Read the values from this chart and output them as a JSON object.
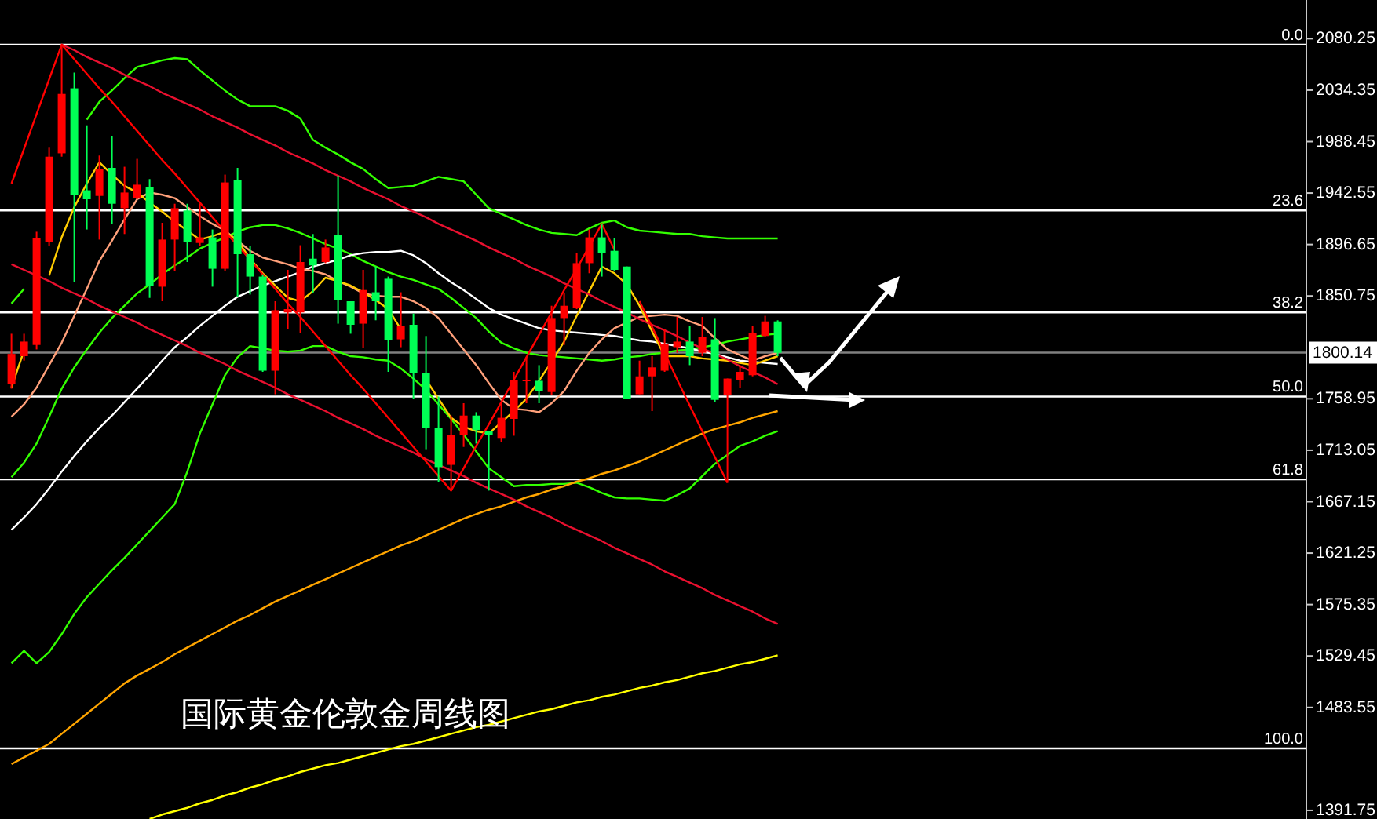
{
  "chart_data": {
    "type": "candlestick",
    "title": "国际黄金伦敦金周线图",
    "tick_labels": "y",
    "ylim": [
      1384,
      2114.8
    ],
    "yticks": [
      2080.25,
      2034.35,
      1988.45,
      1942.55,
      1896.65,
      1850.75,
      1758.95,
      1713.05,
      1667.15,
      1621.25,
      1575.35,
      1529.45,
      1483.55,
      1391.75
    ],
    "categories": [
      null,
      null,
      null,
      null,
      null,
      null,
      null,
      null,
      null,
      null,
      null,
      null,
      null,
      null,
      null,
      null,
      null,
      null,
      null,
      null,
      null,
      null,
      null,
      null,
      null,
      null,
      null,
      null,
      null,
      null,
      null,
      null,
      null,
      null,
      null,
      null,
      null,
      null,
      null,
      null,
      null,
      null,
      null,
      null,
      null,
      null,
      null,
      null,
      null,
      null,
      null,
      null,
      null,
      null,
      null,
      null,
      null,
      null,
      null,
      null,
      null,
      null
    ],
    "ohlc": [
      [
        1772,
        1817,
        1768,
        1799
      ],
      [
        1797,
        1817,
        1793,
        1810
      ],
      [
        1807,
        1908,
        1803,
        1902
      ],
      [
        1899,
        1983,
        1895,
        1975
      ],
      [
        1978,
        2075,
        1975,
        2031
      ],
      [
        2036,
        2050,
        1863,
        1941
      ],
      [
        1945,
        2003,
        1910,
        1937
      ],
      [
        1940,
        1976,
        1901,
        1964
      ],
      [
        1965,
        1993,
        1915,
        1933
      ],
      [
        1929,
        1966,
        1906,
        1943
      ],
      [
        1938,
        1973,
        1937,
        1950
      ],
      [
        1948,
        1955,
        1849,
        1860
      ],
      [
        1859,
        1916,
        1846,
        1901
      ],
      [
        1901,
        1933,
        1873,
        1929
      ],
      [
        1927,
        1933,
        1881,
        1899
      ],
      [
        1898,
        1933,
        1895,
        1903
      ],
      [
        1903,
        1910,
        1859,
        1875
      ],
      [
        1875,
        1959,
        1873,
        1952
      ],
      [
        1954,
        1965,
        1850,
        1888
      ],
      [
        1888,
        1895,
        1852,
        1868
      ],
      [
        1868,
        1870,
        1783,
        1784
      ],
      [
        1784,
        1846,
        1763,
        1838
      ],
      [
        1836,
        1874,
        1821,
        1839
      ],
      [
        1836,
        1896,
        1818,
        1881
      ],
      [
        1884,
        1906,
        1853,
        1878
      ],
      [
        1881,
        1901,
        1880,
        1894
      ],
      [
        1905,
        1958,
        1826,
        1847
      ],
      [
        1846,
        1846,
        1817,
        1825
      ],
      [
        1826,
        1874,
        1804,
        1856
      ],
      [
        1854,
        1877,
        1829,
        1846
      ],
      [
        1866,
        1868,
        1783,
        1811
      ],
      [
        1812,
        1854,
        1805,
        1824
      ],
      [
        1825,
        1835,
        1759,
        1782
      ],
      [
        1782,
        1815,
        1714,
        1733
      ],
      [
        1733,
        1761,
        1685,
        1698
      ],
      [
        1700,
        1744,
        1677,
        1727
      ],
      [
        1727,
        1755,
        1716,
        1744
      ],
      [
        1744,
        1747,
        1719,
        1731
      ],
      [
        1730,
        1730,
        1677,
        1727
      ],
      [
        1724,
        1755,
        1720,
        1742
      ],
      [
        1741,
        1783,
        1726,
        1776
      ],
      [
        1775,
        1796,
        1755,
        1776
      ],
      [
        1775,
        1789,
        1755,
        1766
      ],
      [
        1765,
        1842,
        1762,
        1831
      ],
      [
        1831,
        1853,
        1807,
        1842
      ],
      [
        1840,
        1889,
        1839,
        1880
      ],
      [
        1880,
        1910,
        1871,
        1903
      ],
      [
        1903,
        1915,
        1868,
        1889
      ],
      [
        1891,
        1902,
        1873,
        1874
      ],
      [
        1877,
        1877,
        1759,
        1759
      ],
      [
        1763,
        1793,
        1763,
        1779
      ],
      [
        1779,
        1797,
        1748,
        1787
      ],
      [
        1784,
        1821,
        1783,
        1808
      ],
      [
        1805,
        1832,
        1800,
        1810
      ],
      [
        1810,
        1824,
        1789,
        1797
      ],
      [
        1800,
        1832,
        1797,
        1814
      ],
      [
        1812,
        1831,
        1756,
        1758
      ],
      [
        1762,
        1777,
        1684,
        1777
      ],
      [
        1776,
        1789,
        1769,
        1783
      ],
      [
        1780,
        1824,
        1779,
        1818
      ],
      [
        1815,
        1833,
        1814,
        1828
      ],
      [
        1828,
        1829,
        1797,
        1800
      ]
    ],
    "colors": [
      "#ff0000",
      "#ff0000",
      "#ff0000",
      "#ff0000",
      "#ff0000",
      "#00ff55",
      "#00ff55",
      "#ff0000",
      "#00ff55",
      "#ff0000",
      "#ff0000",
      "#00ff55",
      "#ff0000",
      "#ff0000",
      "#00ff55",
      "#ff0000",
      "#00ff55",
      "#ff0000",
      "#00ff55",
      "#00ff55",
      "#00ff55",
      "#ff0000",
      "#ff0000",
      "#ff0000",
      "#00ff55",
      "#ff0000",
      "#00ff55",
      "#00ff55",
      "#ff0000",
      "#00ff55",
      "#00ff55",
      "#ff0000",
      "#00ff55",
      "#00ff55",
      "#00ff55",
      "#ff0000",
      "#ff0000",
      "#00ff55",
      "#00ff55",
      "#ff0000",
      "#ff0000",
      "#ff0000",
      "#00ff55",
      "#ff0000",
      "#ff0000",
      "#ff0000",
      "#ff0000",
      "#00ff55",
      "#00ff55",
      "#00ff55",
      "#ff0000",
      "#ff0000",
      "#ff0000",
      "#ff0000",
      "#00ff55",
      "#ff0000",
      "#00ff55",
      "#ff0000",
      "#ff0000",
      "#ff0000",
      "#ff0000",
      "#00ff55"
    ],
    "series": [
      {
        "type": "line",
        "color": "#33ff00",
        "values": [
          1844,
          1857,
          null,
          null,
          null,
          null,
          2008,
          2024,
          2034,
          2045,
          2055,
          2058,
          2061,
          2063,
          2062,
          2052,
          2043,
          2034,
          2026,
          2020,
          2020,
          2020,
          2016,
          2009,
          1990,
          1983,
          1977,
          1970,
          1964,
          1955,
          1947,
          1948,
          1949,
          1953,
          1957,
          1955,
          1953,
          1941,
          1929,
          1924,
          1919,
          1914,
          1910,
          1907,
          1906,
          1905,
          1911,
          1916,
          1918,
          1912,
          1909,
          1908,
          1907,
          1906,
          1906,
          1904,
          1903,
          1902,
          1902,
          1902,
          1902,
          1902
        ]
      },
      {
        "type": "line",
        "color": "#33ff00",
        "values": [
          1689,
          1702,
          1719,
          1743,
          1768,
          1787,
          1803,
          1818,
          1831,
          1842,
          1853,
          1861,
          1870,
          1878,
          1885,
          1893,
          1898,
          1903,
          1908,
          1912,
          1914,
          1914,
          1911,
          1907,
          1902,
          1897,
          1893,
          1888,
          1882,
          1877,
          1872,
          1868,
          1865,
          1861,
          1857,
          1849,
          1840,
          1831,
          1819,
          1809,
          1804,
          1800,
          1798,
          1797,
          1796,
          1795,
          1794,
          1793,
          1794,
          1796,
          1797,
          1799,
          1800,
          1802,
          1803,
          1805,
          1807,
          1810,
          1812,
          1814,
          1816,
          1817
        ]
      },
      {
        "type": "line",
        "color": "#33ff00",
        "values": [
          1523,
          1534,
          1523,
          1533,
          1549,
          1567,
          1582,
          1594,
          1606,
          1617,
          1629,
          1641,
          1653,
          1665,
          1694,
          1728,
          1754,
          1780,
          1796,
          1806,
          1804,
          1802,
          1801,
          1802,
          1806,
          1806,
          1801,
          1797,
          1796,
          1794,
          1793,
          1786,
          1777,
          1767,
          1754,
          1741,
          1727,
          1712,
          1697,
          1689,
          1681,
          1682,
          1682,
          1683,
          1683,
          1684,
          1680,
          1675,
          1671,
          1670,
          1670,
          1669,
          1668,
          1673,
          1679,
          1690,
          1701,
          1709,
          1717,
          1721,
          1726,
          1730
        ]
      },
      {
        "type": "line",
        "color": "#ffffff",
        "values": [
          1642,
          1653,
          1665,
          1679,
          1694,
          1708,
          1721,
          1733,
          1744,
          1756,
          1768,
          1780,
          1793,
          1805,
          1814,
          1824,
          1833,
          1842,
          1850,
          1855,
          1860,
          1864,
          1868,
          1872,
          1877,
          1880,
          1883,
          1887,
          1889,
          1890,
          1890,
          1891,
          1887,
          1880,
          1871,
          1863,
          1856,
          1848,
          1840,
          1834,
          1830,
          1826,
          1822,
          1820,
          1819,
          1818,
          1817,
          1816,
          1815,
          1813,
          1811,
          1810,
          1808,
          1806,
          1804,
          1801,
          1799,
          1796,
          1793,
          1792,
          1791,
          1790
        ]
      },
      {
        "type": "line",
        "color": "#ffa07a",
        "values": [
          1743,
          1754,
          1769,
          1789,
          1809,
          1833,
          1857,
          1882,
          1900,
          1919,
          1937,
          1943,
          1941,
          1938,
          1930,
          1922,
          1915,
          1909,
          1900,
          1891,
          1885,
          1882,
          1879,
          1875,
          1873,
          1870,
          1864,
          1859,
          1853,
          1851,
          1850,
          1850,
          1846,
          1840,
          1831,
          1817,
          1803,
          1789,
          1773,
          1758,
          1750,
          1749,
          1747,
          1755,
          1766,
          1784,
          1800,
          1812,
          1822,
          1827,
          1832,
          1833,
          1834,
          1833,
          1828,
          1824,
          1813,
          1803,
          1798,
          1793,
          1797,
          1800
        ]
      },
      {
        "type": "line",
        "color": "#ffcc00",
        "values": [
          1769,
          1802,
          null,
          1869,
          1903,
          1930,
          1951,
          1970,
          1959,
          1949,
          1943,
          1934,
          1926,
          1917,
          1909,
          1901,
          1904,
          1908,
          1900,
          1884,
          1871,
          1860,
          1849,
          1846,
          1855,
          1867,
          1864,
          1860,
          1854,
          1847,
          1839,
          1821,
          null,
          1776,
          1759,
          1742,
          1734,
          1730,
          1728,
          1738,
          1748,
          1759,
          1775,
          1792,
          1810,
          1833,
          1855,
          1877,
          1871,
          1861,
          1842,
          1819,
          1797,
          1797,
          1797,
          1795,
          1794,
          1793,
          1791,
          1789,
          1793,
          1797
        ]
      },
      {
        "type": "line",
        "color": "#ffa500",
        "values": [
          1433,
          1439,
          1445,
          1451,
          1460,
          1469,
          1478,
          1487,
          1496,
          1505,
          1512,
          1518,
          1524,
          1531,
          1537,
          1543,
          1549,
          1555,
          1561,
          1566,
          1572,
          1578,
          1583,
          1588,
          1593,
          1598,
          1603,
          1608,
          1613,
          1618,
          1623,
          1628,
          1632,
          1637,
          1642,
          1647,
          1652,
          1656,
          1660,
          1663,
          1667,
          1671,
          1674,
          1678,
          1681,
          1685,
          1688,
          1692,
          1695,
          1699,
          1703,
          1708,
          1713,
          1718,
          1723,
          1728,
          1732,
          1735,
          1738,
          1742,
          1745,
          1748
        ]
      },
      {
        "type": "line",
        "color": "#ffff00",
        "values": [
          null,
          null,
          null,
          null,
          null,
          null,
          null,
          null,
          null,
          null,
          null,
          1384,
          1388,
          1391,
          1394,
          1398,
          1401,
          1405,
          1408,
          1412,
          1415,
          1419,
          1422,
          1426,
          1429,
          1432,
          1434,
          1437,
          1440,
          1443,
          1446,
          1449,
          1451,
          1454,
          1457,
          1460,
          1463,
          1466,
          1468,
          1471,
          1474,
          1477,
          1480,
          1482,
          1485,
          1488,
          1490,
          1493,
          1495,
          1498,
          1501,
          1503,
          1506,
          1508,
          1511,
          1514,
          1516,
          1519,
          1522,
          1524,
          1527,
          1530
        ]
      },
      {
        "type": "line",
        "color": "#e8102f",
        "values": [
          null,
          null,
          null,
          null,
          2075,
          2070,
          2064,
          2059,
          2054,
          2048,
          2043,
          2038,
          2032,
          2027,
          2022,
          2017,
          2011,
          2006,
          2001,
          1995,
          1990,
          1985,
          1979,
          1974,
          1969,
          1963,
          1958,
          1953,
          1947,
          1942,
          1937,
          1931,
          1926,
          1921,
          1915,
          1910,
          1905,
          1900,
          1894,
          1889,
          1884,
          1878,
          1873,
          1868,
          1862,
          1857,
          1852,
          1846,
          1841,
          1836,
          1830,
          1825,
          1820,
          1815,
          1809,
          1804,
          1799,
          1794,
          1788,
          1783,
          1778,
          1772
        ]
      },
      {
        "type": "line",
        "color": "#e8102f",
        "values": [
          1879,
          1874,
          1869,
          1864,
          1858,
          1853,
          1848,
          1842,
          1837,
          1832,
          1827,
          1821,
          1816,
          1811,
          1806,
          1800,
          1795,
          1790,
          1784,
          1779,
          1774,
          1769,
          1763,
          1758,
          1753,
          1748,
          1742,
          1737,
          1732,
          1726,
          1721,
          1716,
          1711,
          1705,
          1700,
          1695,
          1690,
          1684,
          1679,
          1674,
          1669,
          1663,
          1658,
          1653,
          1647,
          1642,
          1637,
          1632,
          1626,
          1621,
          1616,
          1611,
          1605,
          1600,
          1595,
          1590,
          1584,
          1579,
          1574,
          1569,
          1563,
          1558
        ]
      },
      {
        "type": "line",
        "color": "#ff0000",
        "values": [
          1951,
          1982,
          2013,
          2044,
          2075,
          2062,
          2049,
          2036,
          2024,
          2011,
          1998,
          1985,
          1972,
          1960,
          1947,
          1934,
          1921,
          1908,
          1896,
          1883,
          1870,
          1857,
          1844,
          1832,
          1819,
          1806,
          1793,
          1780,
          1768,
          1755,
          1742,
          1729,
          1716,
          1703,
          1690,
          1677,
          1697,
          1717,
          1736,
          1756,
          1776,
          1796,
          1816,
          1836,
          1856,
          1875,
          1895,
          1915,
          1892,
          null,
          1846,
          1823,
          1800,
          1776,
          1753,
          1730,
          1707,
          1684,
          null,
          null,
          null,
          null
        ]
      }
    ],
    "ref_lines": [
      {
        "axis": "y",
        "value": 2075,
        "color": "#ffffff"
      },
      {
        "axis": "y",
        "value": 1927,
        "color": "#ffffff"
      },
      {
        "axis": "y",
        "value": 1836,
        "color": "#ffffff"
      },
      {
        "axis": "y",
        "value": 1761,
        "color": "#ffffff"
      },
      {
        "axis": "y",
        "value": 1687,
        "color": "#ffffff"
      },
      {
        "axis": "y",
        "value": 1447,
        "color": "#ffffff"
      },
      {
        "axis": "y",
        "value": 1800.14,
        "label": "1800.14",
        "color": "#808080"
      }
    ],
    "annotations": [
      {
        "text": "0.0",
        "y": 2075
      },
      {
        "text": "23.6",
        "y": 1927
      },
      {
        "text": "38.2",
        "y": 1836
      },
      {
        "text": "50.0",
        "y": 1761
      },
      {
        "text": "61.8",
        "y": 1687
      },
      {
        "text": "100.0",
        "y": 1447
      }
    ]
  }
}
